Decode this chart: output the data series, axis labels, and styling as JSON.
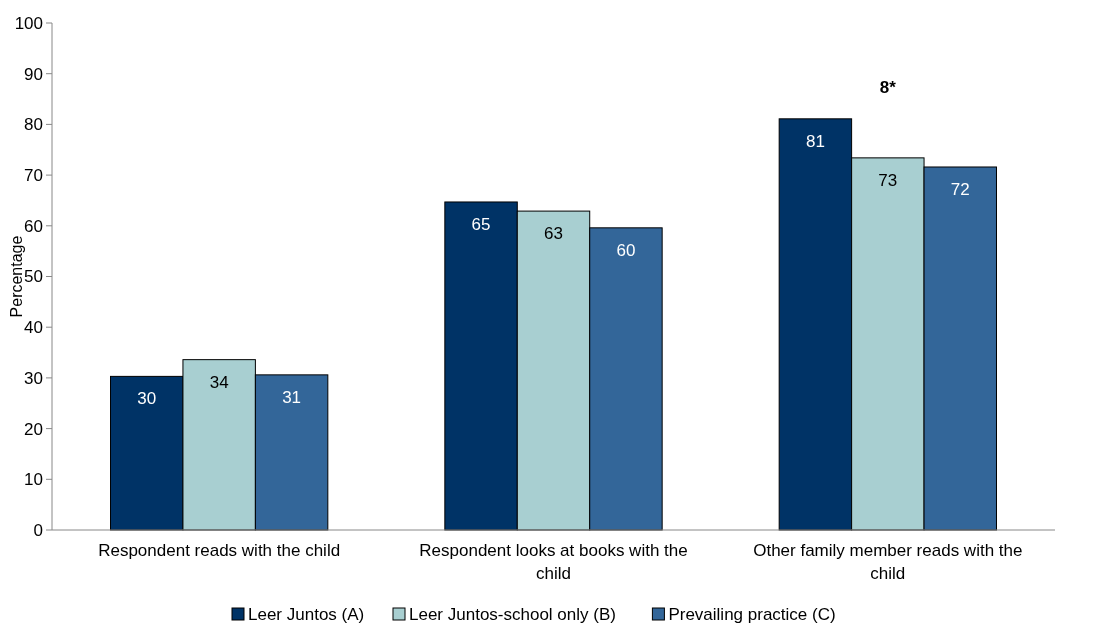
{
  "chart_data": {
    "type": "bar",
    "ylabel": "Percentage",
    "categories": [
      "Respondent reads with the child",
      "Respondent looks at books with the child",
      "Other family member reads with the child"
    ],
    "series": [
      {
        "name": "Leer Juntos (A)",
        "color": "#003366",
        "values": [
          30.3,
          64.7,
          81.1
        ],
        "value_labels": [
          "30",
          "65",
          "81"
        ]
      },
      {
        "name": "Leer Juntos-school only (B)",
        "color": "#a8cfd1",
        "values": [
          33.6,
          62.9,
          73.4
        ],
        "value_labels": [
          "34",
          "63",
          "73"
        ]
      },
      {
        "name": "Prevailing practice (C)",
        "color": "#336699",
        "values": [
          30.6,
          59.6,
          71.6
        ],
        "value_labels": [
          "31",
          "60",
          "72"
        ]
      }
    ],
    "ylim": [
      0,
      100
    ],
    "yticks": [
      0,
      10,
      20,
      30,
      40,
      50,
      60,
      70,
      80,
      90,
      100
    ],
    "grid": false,
    "legend": "bottom",
    "annotations": [
      "8*"
    ]
  }
}
